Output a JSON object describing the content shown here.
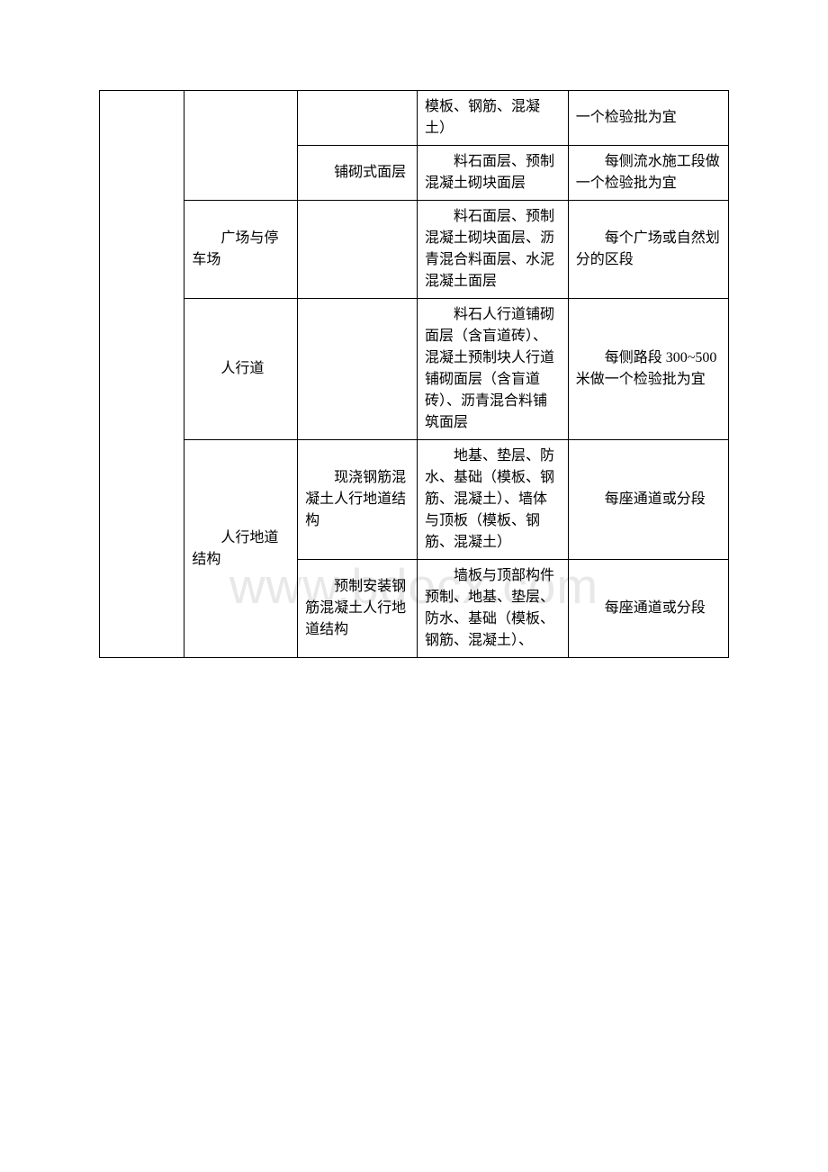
{
  "watermark": "www.bdocx.com",
  "table": {
    "col_widths": [
      "13.5%",
      "18%",
      "19%",
      "24%",
      "25.5%"
    ],
    "rows": [
      {
        "c1": {
          "text": "",
          "rowspan": 7
        },
        "c2": {
          "text": "",
          "rowspan": 2
        },
        "c3": {
          "text": ""
        },
        "c4": {
          "text": "模板、钢筋、混凝土）",
          "indent": false
        },
        "c5": {
          "text": "一个检验批为宜",
          "indent": false
        }
      },
      {
        "c3": {
          "text": "铺砌式面层",
          "indent": true
        },
        "c4": {
          "text": "料石面层、预制混凝土砌块面层",
          "indent": true
        },
        "c5": {
          "text": "每侧流水施工段做一个检验批为宜",
          "indent": true
        }
      },
      {
        "c2": {
          "text": "广场与停车场",
          "indent": true
        },
        "c3": {
          "text": ""
        },
        "c4": {
          "text": "料石面层、预制混凝土砌块面层、沥青混合料面层、水泥混凝土面层",
          "indent": true
        },
        "c5": {
          "text": "每个广场或自然划分的区段",
          "indent": true
        }
      },
      {
        "c2": {
          "text": "人行道",
          "indent": true
        },
        "c3": {
          "text": ""
        },
        "c4": {
          "text": "料石人行道铺砌面层（含盲道砖）、混凝土预制块人行道铺砌面层（含盲道砖）、沥青混合料铺筑面层",
          "indent": true
        },
        "c5": {
          "text": "每侧路段 300~500 米做一个检验批为宜",
          "indent": true
        }
      },
      {
        "c2": {
          "text": "人行地道结构",
          "indent": true,
          "rowspan": 3
        },
        "c3": {
          "text": "现浇钢筋混凝土人行地道结构",
          "indent": true
        },
        "c4": {
          "text": "地基、垫层、防水、基础（模板、钢筋、混凝土）、墙体与顶板（模板、钢筋、混凝土）",
          "indent": true
        },
        "c5": {
          "text": "每座通道或分段",
          "indent": true
        }
      },
      {
        "c3": {
          "text": "预制安装钢筋混凝土人行地道结构",
          "indent": true
        },
        "c4": {
          "text": "墙板与顶部构件预制、地基、垫层、防水、基础（模板、钢筋、混凝土）、",
          "indent": true
        },
        "c5": {
          "text": "每座通道或分段",
          "indent": true
        }
      }
    ]
  }
}
